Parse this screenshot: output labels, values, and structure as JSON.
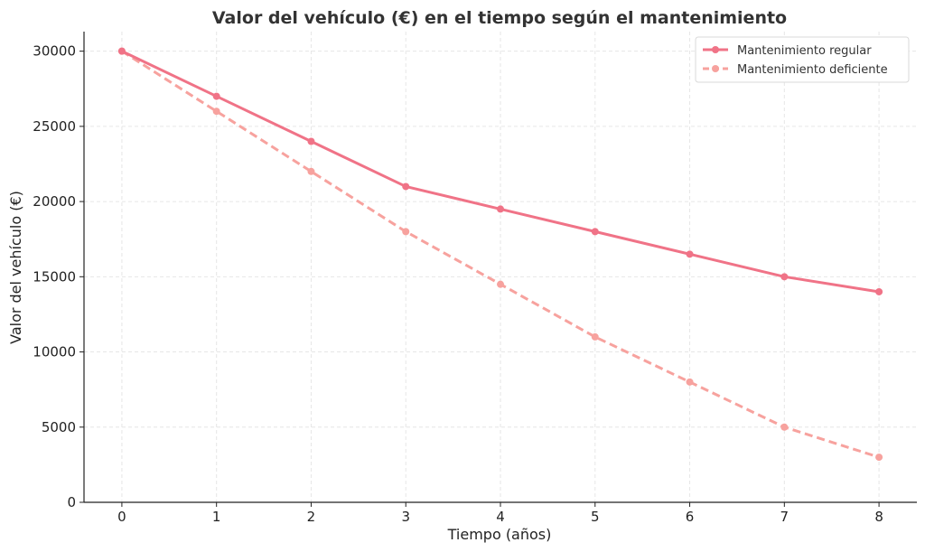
{
  "chart_data": {
    "type": "line",
    "title": "Valor del vehículo (€) en el tiempo según el mantenimiento",
    "xlabel": "Tiempo (años)",
    "ylabel": "Valor del vehículo (€)",
    "x": [
      0,
      1,
      2,
      3,
      4,
      5,
      6,
      7,
      8
    ],
    "xlim": [
      -0.4,
      8.4
    ],
    "ylim": [
      0,
      31300
    ],
    "xticks": [
      "0",
      "1",
      "2",
      "3",
      "4",
      "5",
      "6",
      "7",
      "8"
    ],
    "yticks": [
      "0",
      "5000",
      "10000",
      "15000",
      "20000",
      "25000",
      "30000"
    ],
    "grid": true,
    "legend_position": "top-right",
    "series": [
      {
        "name": "Mantenimiento regular",
        "values": [
          30000,
          27000,
          24000,
          21000,
          19500,
          18000,
          16500,
          15000,
          14000
        ],
        "color": "#f07387",
        "style": "solid"
      },
      {
        "name": "Mantenimiento deficiente",
        "values": [
          30000,
          26000,
          22000,
          18000,
          14500,
          11000,
          8000,
          5000,
          3000
        ],
        "color": "#f7a29e",
        "style": "dashed"
      }
    ]
  }
}
